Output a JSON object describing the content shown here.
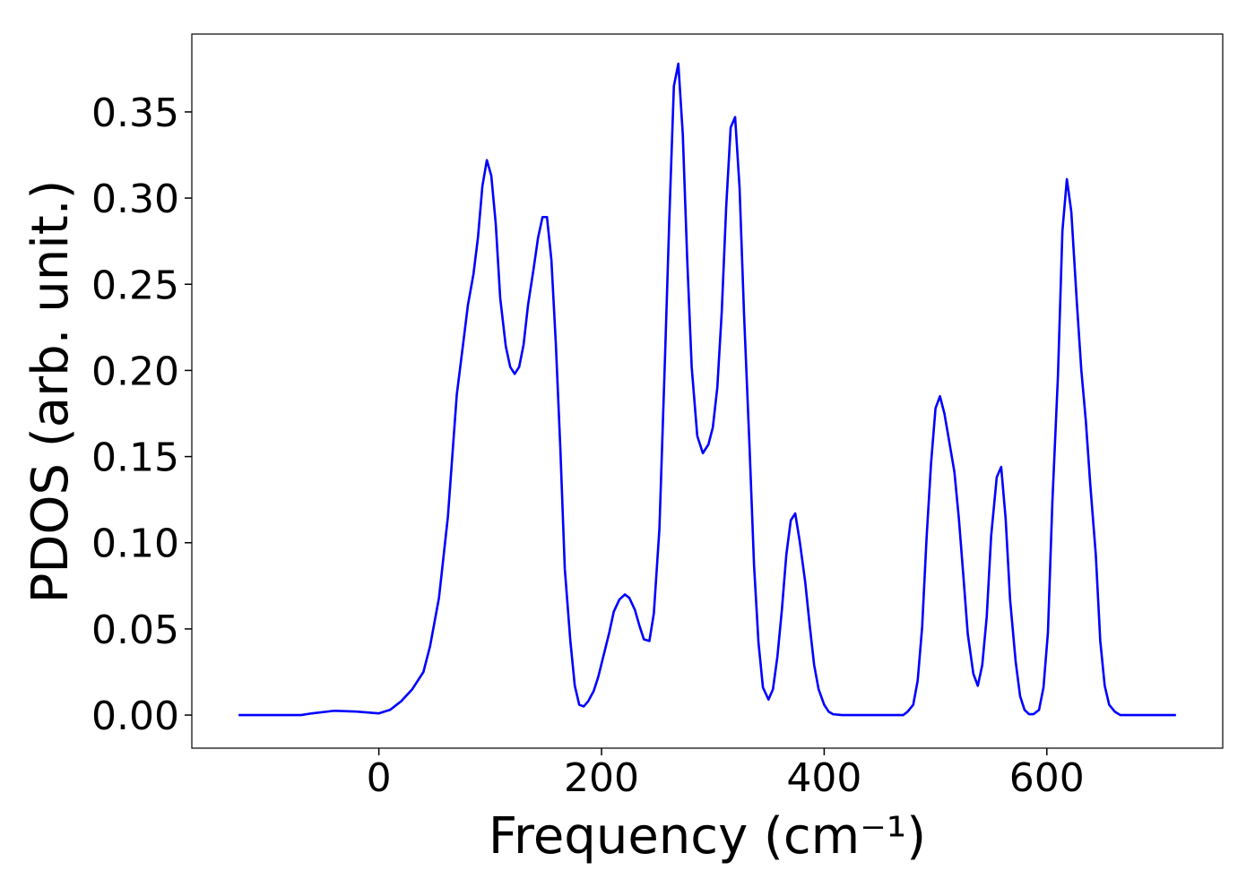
{
  "chart_data": {
    "type": "line",
    "x_label": "Frequency (cm⁻¹)",
    "y_label": "PDOS (arb. unit.)",
    "x": [
      -126,
      -70,
      -60,
      -40,
      -20,
      0,
      10,
      20,
      30,
      40,
      46,
      54,
      62,
      70,
      76,
      80,
      85,
      89,
      93,
      97,
      101,
      105,
      109,
      114,
      118,
      122,
      126,
      130,
      134,
      139,
      143,
      147,
      151,
      155,
      159,
      163,
      167,
      172,
      176,
      180,
      184,
      188,
      193,
      197,
      202,
      207,
      211,
      216,
      221,
      225,
      230,
      234,
      238,
      243,
      247,
      252,
      257,
      261,
      265,
      269,
      273,
      277,
      281,
      286,
      291,
      296,
      300,
      304,
      308,
      312,
      316,
      320,
      324,
      328,
      333,
      337,
      341,
      345,
      350,
      354,
      358,
      362,
      366,
      370,
      374,
      378,
      383,
      387,
      391,
      395,
      400,
      404,
      408,
      416,
      471,
      475,
      480,
      484,
      488,
      492,
      496,
      500,
      504,
      508,
      512,
      517,
      521,
      525,
      529,
      534,
      538,
      542,
      546,
      550,
      555,
      559,
      563,
      567,
      572,
      576,
      580,
      584,
      588,
      593,
      597,
      601,
      605,
      610,
      614,
      618,
      622,
      627,
      631,
      635,
      639,
      644,
      648,
      652,
      656,
      661,
      666,
      716
    ],
    "series": [
      {
        "color": "#0000ff",
        "values": [
          0,
          0,
          0.001,
          0.0025,
          0.002,
          0.001,
          0.003,
          0.008,
          0.015,
          0.025,
          0.04,
          0.068,
          0.115,
          0.186,
          0.217,
          0.238,
          0.256,
          0.277,
          0.307,
          0.322,
          0.313,
          0.285,
          0.242,
          0.214,
          0.202,
          0.198,
          0.202,
          0.215,
          0.238,
          0.259,
          0.277,
          0.289,
          0.289,
          0.264,
          0.215,
          0.155,
          0.085,
          0.043,
          0.017,
          0.006,
          0.005,
          0.008,
          0.014,
          0.022,
          0.035,
          0.048,
          0.06,
          0.067,
          0.07,
          0.068,
          0.061,
          0.052,
          0.044,
          0.043,
          0.059,
          0.108,
          0.207,
          0.29,
          0.365,
          0.378,
          0.337,
          0.264,
          0.202,
          0.162,
          0.152,
          0.157,
          0.167,
          0.19,
          0.234,
          0.295,
          0.341,
          0.347,
          0.306,
          0.233,
          0.155,
          0.087,
          0.042,
          0.016,
          0.009,
          0.015,
          0.034,
          0.061,
          0.093,
          0.113,
          0.117,
          0.101,
          0.077,
          0.052,
          0.029,
          0.015,
          0.006,
          0.002,
          0.0005,
          0,
          0,
          0.002,
          0.006,
          0.02,
          0.051,
          0.103,
          0.146,
          0.178,
          0.185,
          0.175,
          0.16,
          0.141,
          0.114,
          0.081,
          0.047,
          0.024,
          0.017,
          0.029,
          0.057,
          0.104,
          0.138,
          0.144,
          0.114,
          0.067,
          0.031,
          0.011,
          0.003,
          0.0005,
          0.0005,
          0.003,
          0.016,
          0.048,
          0.124,
          0.197,
          0.281,
          0.311,
          0.292,
          0.239,
          0.2,
          0.171,
          0.134,
          0.093,
          0.043,
          0.017,
          0.006,
          0.002,
          0,
          0
        ]
      }
    ],
    "xlim": [
      -168,
      758
    ],
    "ylim": [
      -0.0192,
      0.3952
    ],
    "xticks": [
      0,
      200,
      400,
      600
    ],
    "yticks": [
      {
        "value": 0,
        "label": "0.00"
      },
      {
        "value": 0.05,
        "label": "0.05"
      },
      {
        "value": 0.1,
        "label": "0.10"
      },
      {
        "value": 0.15,
        "label": "0.15"
      },
      {
        "value": 0.2,
        "label": "0.20"
      },
      {
        "value": 0.25,
        "label": "0.25"
      },
      {
        "value": 0.3,
        "label": "0.30"
      },
      {
        "value": 0.35,
        "label": "0.35"
      }
    ],
    "grid": false
  }
}
